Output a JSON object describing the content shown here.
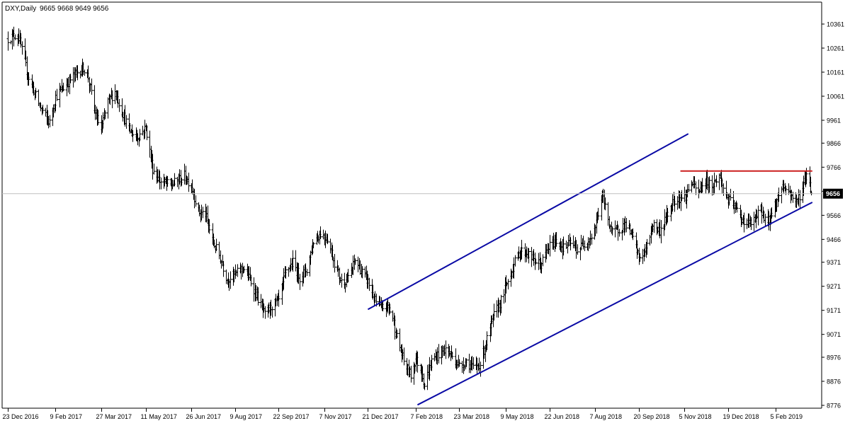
{
  "header": {
    "symbol_label": "DXY,Daily",
    "ohlc_text": "9665 9668 9649 9656"
  },
  "colors": {
    "background": "#ffffff",
    "bars": "#000000",
    "channel": "#0a0aa5",
    "resistance": "#cc1f1f",
    "price_line": "#c0c0c0",
    "price_tag_bg": "#000000",
    "price_tag_text": "#ffffff"
  },
  "chart_data": {
    "type": "ohlc",
    "title": "DXY,Daily",
    "ohlc_last": {
      "open": 9665,
      "high": 9668,
      "low": 9649,
      "close": 9656
    },
    "current_price": 9656,
    "ylim": [
      8750,
      10400
    ],
    "y_ticks": [
      10361,
      10261,
      10161,
      10061,
      9961,
      9866,
      9766,
      9666,
      9566,
      9466,
      9371,
      9271,
      9171,
      9071,
      8976,
      8876,
      8776
    ],
    "x_ticks": [
      "23 Dec 2016",
      "9 Feb 2017",
      "27 Mar 2017",
      "11 May 2017",
      "26 Jun 2017",
      "9 Aug 2017",
      "22 Sep 2017",
      "7 Nov 2017",
      "21 Dec 2017",
      "7 Feb 2018",
      "23 Mar 2018",
      "9 May 2018",
      "22 Jun 2018",
      "7 Aug 2018",
      "20 Sep 2018",
      "5 Nov 2018",
      "19 Dec 2018",
      "5 Feb 2019"
    ],
    "grid": false,
    "price_anchors": [
      [
        "23 Dec 2016",
        10300
      ],
      [
        "2 Jan 2017",
        10320
      ],
      [
        "12 Jan 2017",
        10150
      ],
      [
        "24 Jan 2017",
        10020
      ],
      [
        "3 Feb 2017",
        9950
      ],
      [
        "9 Feb 2017",
        10060
      ],
      [
        "20 Feb 2017",
        10110
      ],
      [
        "28 Feb 2017",
        10150
      ],
      [
        "9 Mar 2017",
        10180
      ],
      [
        "14 Mar 2017",
        10140
      ],
      [
        "20 Mar 2017",
        10000
      ],
      [
        "27 Mar 2017",
        9920
      ],
      [
        "3 Apr 2017",
        10040
      ],
      [
        "10 Apr 2017",
        10080
      ],
      [
        "17 Apr 2017",
        10000
      ],
      [
        "24 Apr 2017",
        9920
      ],
      [
        "2 May 2017",
        9890
      ],
      [
        "11 May 2017",
        9930
      ],
      [
        "18 May 2017",
        9760
      ],
      [
        "25 May 2017",
        9710
      ],
      [
        "5 Jun 2017",
        9690
      ],
      [
        "12 Jun 2017",
        9710
      ],
      [
        "19 Jun 2017",
        9730
      ],
      [
        "26 Jun 2017",
        9690
      ],
      [
        "3 Jul 2017",
        9580
      ],
      [
        "10 Jul 2017",
        9570
      ],
      [
        "17 Jul 2017",
        9460
      ],
      [
        "24 Jul 2017",
        9400
      ],
      [
        "1 Aug 2017",
        9300
      ],
      [
        "9 Aug 2017",
        9320
      ],
      [
        "17 Aug 2017",
        9350
      ],
      [
        "24 Aug 2017",
        9300
      ],
      [
        "1 Sep 2017",
        9220
      ],
      [
        "8 Sep 2017",
        9150
      ],
      [
        "15 Sep 2017",
        9190
      ],
      [
        "22 Sep 2017",
        9210
      ],
      [
        "29 Sep 2017",
        9330
      ],
      [
        "6 Oct 2017",
        9370
      ],
      [
        "13 Oct 2017",
        9310
      ],
      [
        "20 Oct 2017",
        9340
      ],
      [
        "27 Oct 2017",
        9460
      ],
      [
        "3 Nov 2017",
        9490
      ],
      [
        "10 Nov 2017",
        9470
      ],
      [
        "17 Nov 2017",
        9370
      ],
      [
        "24 Nov 2017",
        9290
      ],
      [
        "1 Dec 2017",
        9300
      ],
      [
        "8 Dec 2017",
        9380
      ],
      [
        "15 Dec 2017",
        9330
      ],
      [
        "21 Dec 2017",
        9290
      ],
      [
        "28 Dec 2017",
        9210
      ],
      [
        "3 Jan 2018",
        9180
      ],
      [
        "10 Jan 2018",
        9190
      ],
      [
        "15 Jan 2018",
        9140
      ],
      [
        "19 Jan 2018",
        9060
      ],
      [
        "26 Jan 2018",
        8960
      ],
      [
        "2 Feb 2018",
        8900
      ],
      [
        "7 Feb 2018",
        8970
      ],
      [
        "13 Feb 2018",
        8920
      ],
      [
        "16 Feb 2018",
        8860
      ],
      [
        "23 Feb 2018",
        8960
      ],
      [
        "2 Mar 2018",
        8990
      ],
      [
        "9 Mar 2018",
        9010
      ],
      [
        "16 Mar 2018",
        8980
      ],
      [
        "23 Mar 2018",
        8940
      ],
      [
        "30 Mar 2018",
        8960
      ],
      [
        "6 Apr 2018",
        8930
      ],
      [
        "13 Apr 2018",
        8950
      ],
      [
        "20 Apr 2018",
        9050
      ],
      [
        "27 Apr 2018",
        9150
      ],
      [
        "4 May 2018",
        9210
      ],
      [
        "9 May 2018",
        9270
      ],
      [
        "16 May 2018",
        9350
      ],
      [
        "23 May 2018",
        9420
      ],
      [
        "30 May 2018",
        9410
      ],
      [
        "6 Jun 2018",
        9380
      ],
      [
        "13 Jun 2018",
        9360
      ],
      [
        "22 Jun 2018",
        9440
      ],
      [
        "29 Jun 2018",
        9460
      ],
      [
        "6 Jul 2018",
        9430
      ],
      [
        "13 Jul 2018",
        9450
      ],
      [
        "20 Jul 2018",
        9420
      ],
      [
        "27 Jul 2018",
        9450
      ],
      [
        "3 Aug 2018",
        9480
      ],
      [
        "7 Aug 2018",
        9520
      ],
      [
        "14 Aug 2018",
        9650
      ],
      [
        "17 Aug 2018",
        9600
      ],
      [
        "24 Aug 2018",
        9490
      ],
      [
        "31 Aug 2018",
        9510
      ],
      [
        "7 Sep 2018",
        9530
      ],
      [
        "14 Sep 2018",
        9470
      ],
      [
        "20 Sep 2018",
        9390
      ],
      [
        "27 Sep 2018",
        9420
      ],
      [
        "4 Oct 2018",
        9530
      ],
      [
        "11 Oct 2018",
        9500
      ],
      [
        "18 Oct 2018",
        9560
      ],
      [
        "25 Oct 2018",
        9630
      ],
      [
        "1 Nov 2018",
        9640
      ],
      [
        "5 Nov 2018",
        9640
      ],
      [
        "12 Nov 2018",
        9700
      ],
      [
        "19 Nov 2018",
        9660
      ],
      [
        "26 Nov 2018",
        9710
      ],
      [
        "3 Dec 2018",
        9690
      ],
      [
        "10 Dec 2018",
        9730
      ],
      [
        "14 Dec 2018",
        9680
      ],
      [
        "19 Dec 2018",
        9630
      ],
      [
        "26 Dec 2018",
        9600
      ],
      [
        "31 Dec 2018",
        9560
      ],
      [
        "7 Jan 2019",
        9530
      ],
      [
        "14 Jan 2019",
        9540
      ],
      [
        "21 Jan 2019",
        9590
      ],
      [
        "28 Jan 2019",
        9530
      ],
      [
        "5 Feb 2019",
        9620
      ],
      [
        "12 Feb 2019",
        9690
      ],
      [
        "19 Feb 2019",
        9660
      ],
      [
        "26 Feb 2019",
        9620
      ],
      [
        "4 Mar 2019",
        9680
      ],
      [
        "8 Mar 2019",
        9740
      ],
      [
        "11 Mar 2019",
        9700
      ],
      [
        "13 Mar 2019",
        9656
      ]
    ],
    "trendlines": [
      {
        "name": "channel-upper",
        "role": "channel",
        "from": [
          "21 Dec 2017",
          9175
        ],
        "to": [
          "9 Nov 2018",
          9905
        ]
      },
      {
        "name": "channel-lower",
        "role": "channel",
        "from": [
          "9 Feb 2018",
          8778
        ],
        "to": [
          "14 Mar 2019",
          9620
        ]
      },
      {
        "name": "resistance",
        "role": "resistance",
        "from": [
          "1 Nov 2018",
          9750
        ],
        "to": [
          "14 Mar 2019",
          9750
        ]
      }
    ]
  }
}
